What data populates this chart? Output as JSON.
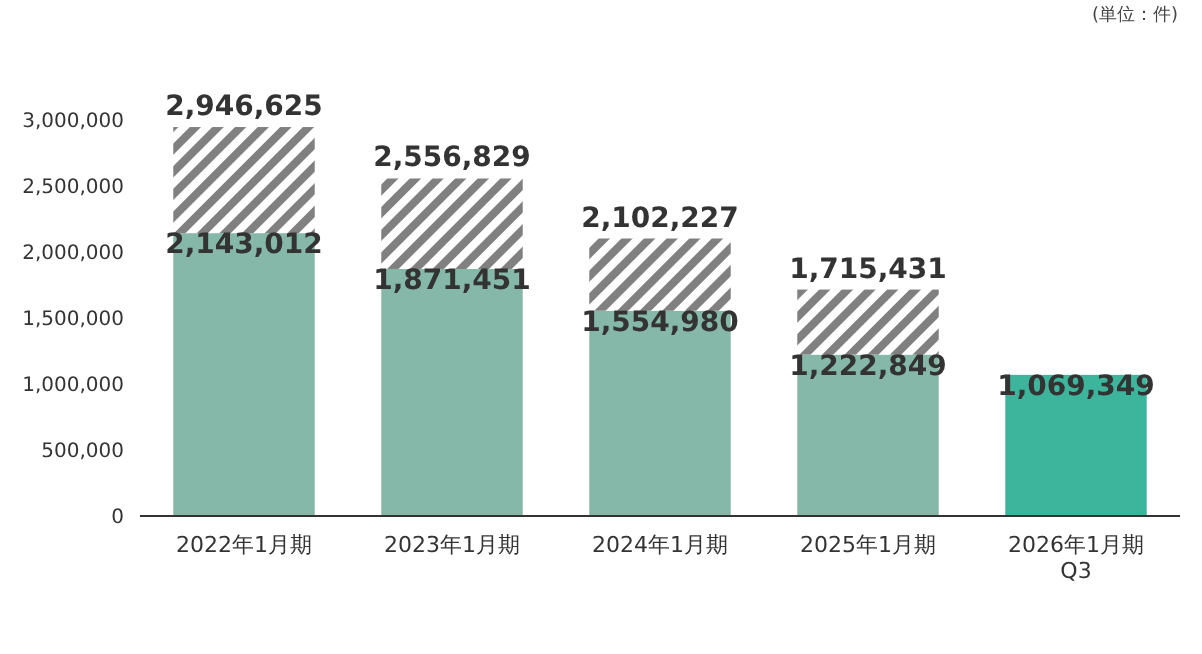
{
  "chart_data": {
    "type": "bar",
    "stacked": true,
    "categories": [
      "2022年1月期",
      "2023年1月期",
      "2024年1月期",
      "2025年1月期",
      "2026年1月期\nQ3"
    ],
    "series": [
      {
        "color": "#86b8aa",
        "colors": [
          "#86b8aa",
          "#86b8aa",
          "#86b8aa",
          "#86b8aa",
          "#3db59c"
        ],
        "values": [
          2143012,
          1871451,
          1554980,
          1222849,
          1069349
        ],
        "value_labels": [
          "2,143,012",
          "1,871,451",
          "1,554,980",
          "1,222,849",
          "1,069,349"
        ]
      },
      {
        "color": "#808080",
        "values": [
          803613,
          685378,
          547247,
          492582,
          null
        ],
        "value_labels": [
          null,
          null,
          null,
          null,
          null
        ]
      }
    ],
    "totals": [
      "2,946,625",
      "2,556,829",
      "2,102,227",
      "1,715,431",
      null
    ],
    "ylim": [
      0,
      3000000
    ],
    "yticks": [
      {
        "value": 0,
        "label": "0"
      },
      {
        "value": 500000,
        "label": "500,000"
      },
      {
        "value": 1000000,
        "label": "1,000,000"
      },
      {
        "value": 1500000,
        "label": "1,500,000"
      },
      {
        "value": 2000000,
        "label": "2,000,000"
      },
      {
        "value": 2500000,
        "label": "2,500,000"
      },
      {
        "value": 3000000,
        "label": "3,000,000"
      }
    ],
    "grid": false,
    "annotations": [
      "(単位：件)"
    ]
  }
}
